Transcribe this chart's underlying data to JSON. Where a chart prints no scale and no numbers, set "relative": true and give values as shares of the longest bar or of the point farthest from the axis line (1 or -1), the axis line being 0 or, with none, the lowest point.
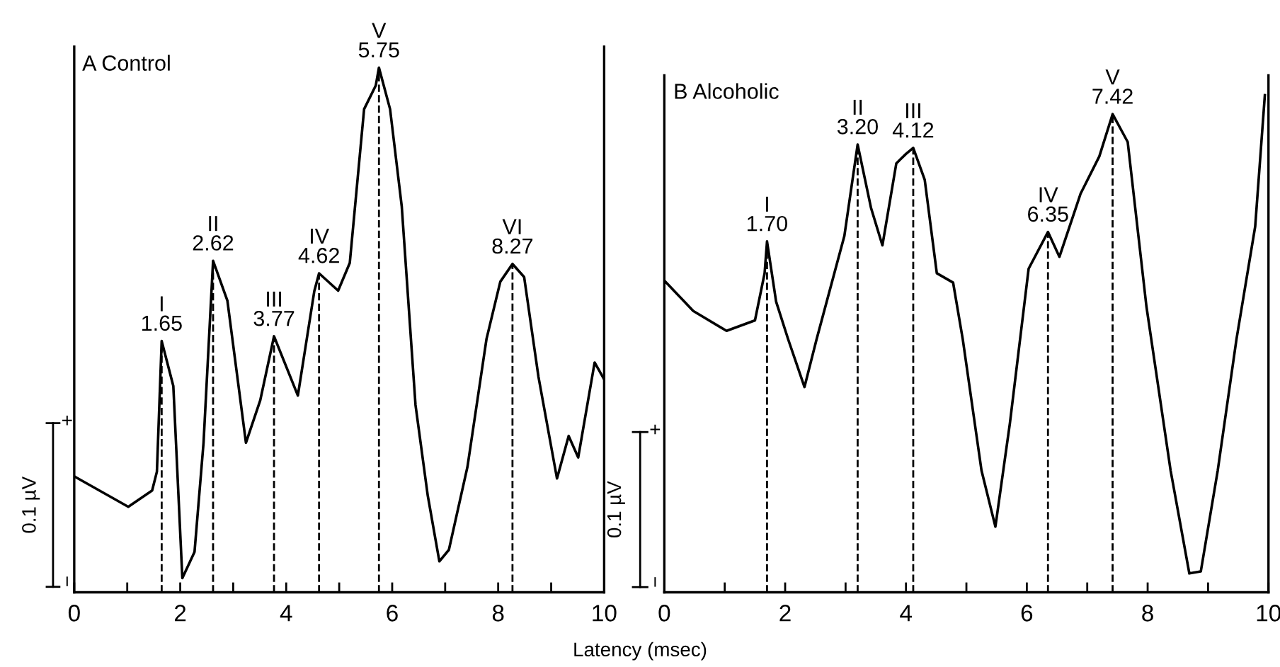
{
  "chart_data": [
    {
      "type": "line",
      "title": "A Control",
      "relative": true,
      "xlim": [
        0,
        10
      ],
      "xticks": [
        0,
        {
          "value": 1,
          "label": null
        },
        2,
        {
          "value": 3,
          "label": null
        },
        4,
        {
          "value": 5,
          "label": null
        },
        6,
        {
          "value": 7,
          "label": null
        },
        8,
        {
          "value": 9,
          "label": null
        },
        10
      ],
      "xlabel": "Latency (msec)",
      "grid": false,
      "marker": "none",
      "line_style": "solid",
      "series": [
        {
          "color": "#000000",
          "x": [
            0,
            1.02,
            1.47,
            1.56,
            1.65,
            1.87,
            2.04,
            2.27,
            2.44,
            2.62,
            2.89,
            3.24,
            3.51,
            3.77,
            4.22,
            4.53,
            4.62,
            4.98,
            5.2,
            5.47,
            5.69,
            5.75,
            5.96,
            6.18,
            6.44,
            6.67,
            6.89,
            7.07,
            7.42,
            7.78,
            8.04,
            8.27,
            8.49,
            8.76,
            9.11,
            9.33,
            9.51,
            9.82,
            10.0
          ],
          "values": [
            0.221,
            0.163,
            0.194,
            0.23,
            0.479,
            0.393,
            0.027,
            0.077,
            0.285,
            0.632,
            0.556,
            0.285,
            0.366,
            0.488,
            0.375,
            0.574,
            0.608,
            0.575,
            0.628,
            0.921,
            0.966,
            1.0,
            0.921,
            0.736,
            0.357,
            0.185,
            0.059,
            0.081,
            0.239,
            0.483,
            0.592,
            0.626,
            0.601,
            0.411,
            0.217,
            0.298,
            0.257,
            0.438,
            0.406
          ]
        }
      ],
      "ref_lines": [
        {
          "axis": "x",
          "value": 1.65,
          "label": "I\n1.65",
          "line_style": "dashed",
          "color": "#000000"
        },
        {
          "axis": "x",
          "value": 2.62,
          "label": "II\n2.62",
          "line_style": "dashed",
          "color": "#000000"
        },
        {
          "axis": "x",
          "value": 3.77,
          "label": "III\n3.77",
          "line_style": "dashed",
          "color": "#000000"
        },
        {
          "axis": "x",
          "value": 4.62,
          "label": "IV\n4.62",
          "line_style": "dashed",
          "color": "#000000"
        },
        {
          "axis": "x",
          "value": 5.75,
          "label": "V\n5.75",
          "line_style": "dashed",
          "color": "#000000"
        },
        {
          "axis": "x",
          "value": 8.27,
          "label": "VI\n8.27",
          "line_style": "dashed",
          "color": "#000000"
        }
      ],
      "annotations": [
        "0.1 µV",
        "+",
        "−"
      ]
    },
    {
      "type": "line",
      "title": "B Alcoholic",
      "relative": true,
      "xlim": [
        0,
        10
      ],
      "xticks": [
        0,
        {
          "value": 1,
          "label": null
        },
        2,
        {
          "value": 3,
          "label": null
        },
        4,
        {
          "value": 5,
          "label": null
        },
        6,
        {
          "value": 7,
          "label": null
        },
        8,
        {
          "value": 9,
          "label": null
        },
        10
      ],
      "grid": false,
      "marker": "none",
      "line_style": "solid",
      "series": [
        {
          "color": "#000000",
          "x": [
            0,
            0.48,
            1.03,
            1.5,
            1.66,
            1.7,
            1.85,
            2.05,
            2.32,
            2.52,
            2.75,
            2.98,
            3.2,
            3.42,
            3.61,
            3.84,
            4.0,
            4.12,
            4.31,
            4.51,
            4.78,
            4.94,
            5.25,
            5.48,
            5.72,
            6.03,
            6.35,
            6.54,
            6.89,
            7.2,
            7.42,
            7.67,
            7.98,
            8.38,
            8.69,
            8.88,
            9.16,
            9.47,
            9.78,
            9.94
          ],
          "values": [
            0.627,
            0.566,
            0.526,
            0.547,
            0.642,
            0.706,
            0.585,
            0.509,
            0.413,
            0.509,
            0.613,
            0.717,
            0.901,
            0.774,
            0.698,
            0.863,
            0.882,
            0.894,
            0.83,
            0.642,
            0.623,
            0.509,
            0.245,
            0.132,
            0.34,
            0.651,
            0.725,
            0.675,
            0.802,
            0.877,
            0.962,
            0.906,
            0.575,
            0.245,
            0.038,
            0.042,
            0.245,
            0.509,
            0.736,
            1.0
          ]
        }
      ],
      "ref_lines": [
        {
          "axis": "x",
          "value": 1.7,
          "label": "I\n1.70",
          "line_style": "dashed",
          "color": "#000000"
        },
        {
          "axis": "x",
          "value": 3.2,
          "label": "II\n3.20",
          "line_style": "dashed",
          "color": "#000000"
        },
        {
          "axis": "x",
          "value": 4.12,
          "label": "III\n4.12",
          "line_style": "dashed",
          "color": "#000000"
        },
        {
          "axis": "x",
          "value": 6.35,
          "label": "IV\n6.35",
          "line_style": "dashed",
          "color": "#000000"
        },
        {
          "axis": "x",
          "value": 7.42,
          "label": "V\n7.42",
          "line_style": "dashed",
          "color": "#000000"
        }
      ],
      "annotations": [
        "0.1 µV",
        "+",
        "−"
      ]
    }
  ]
}
